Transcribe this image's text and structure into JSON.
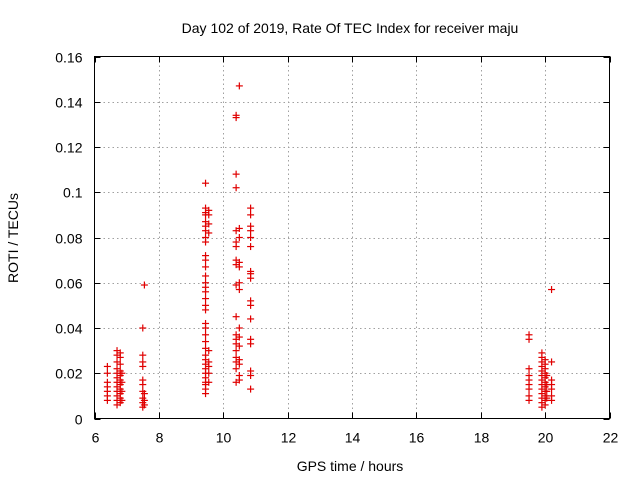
{
  "chart_data": {
    "type": "scatter",
    "title": "Day 102 of 2019, Rate Of TEC Index for receiver maju",
    "xlabel": "GPS time / hours",
    "ylabel": "ROTI / TECUs",
    "xlim": [
      6,
      22
    ],
    "ylim": [
      0,
      0.16
    ],
    "xticks": [
      6,
      8,
      10,
      12,
      14,
      16,
      18,
      20,
      22
    ],
    "yticks": [
      0,
      0.02,
      0.04,
      0.06,
      0.08,
      0.1,
      0.12,
      0.14,
      0.16
    ],
    "ytick_labels": [
      "0",
      "0.02",
      "0.04",
      "0.06",
      "0.08",
      "0.1",
      "0.12",
      "0.14",
      "0.16"
    ],
    "grid": true,
    "marker": "+",
    "color": "#e00000",
    "series": [
      {
        "name": "ROTI",
        "points": [
          [
            6.4,
            0.008
          ],
          [
            6.4,
            0.01
          ],
          [
            6.4,
            0.012
          ],
          [
            6.4,
            0.014
          ],
          [
            6.4,
            0.016
          ],
          [
            6.4,
            0.02
          ],
          [
            6.4,
            0.023
          ],
          [
            6.7,
            0.006
          ],
          [
            6.7,
            0.008
          ],
          [
            6.7,
            0.01
          ],
          [
            6.7,
            0.012
          ],
          [
            6.7,
            0.014
          ],
          [
            6.7,
            0.016
          ],
          [
            6.7,
            0.018
          ],
          [
            6.7,
            0.02
          ],
          [
            6.7,
            0.022
          ],
          [
            6.7,
            0.025
          ],
          [
            6.7,
            0.028
          ],
          [
            6.7,
            0.03
          ],
          [
            6.8,
            0.007
          ],
          [
            6.8,
            0.009
          ],
          [
            6.8,
            0.011
          ],
          [
            6.8,
            0.013
          ],
          [
            6.8,
            0.015
          ],
          [
            6.8,
            0.017
          ],
          [
            6.8,
            0.019
          ],
          [
            6.8,
            0.021
          ],
          [
            6.8,
            0.024
          ],
          [
            6.8,
            0.027
          ],
          [
            6.8,
            0.029
          ],
          [
            6.85,
            0.008
          ],
          [
            6.85,
            0.012
          ],
          [
            6.85,
            0.016
          ],
          [
            6.85,
            0.02
          ],
          [
            7.5,
            0.005
          ],
          [
            7.5,
            0.007
          ],
          [
            7.5,
            0.009
          ],
          [
            7.5,
            0.012
          ],
          [
            7.5,
            0.015
          ],
          [
            7.5,
            0.017
          ],
          [
            7.5,
            0.023
          ],
          [
            7.5,
            0.025
          ],
          [
            7.5,
            0.028
          ],
          [
            7.5,
            0.04
          ],
          [
            7.55,
            0.059
          ],
          [
            7.55,
            0.006
          ],
          [
            7.55,
            0.008
          ],
          [
            7.55,
            0.011
          ],
          [
            9.45,
            0.011
          ],
          [
            9.45,
            0.013
          ],
          [
            9.45,
            0.015
          ],
          [
            9.45,
            0.016
          ],
          [
            9.45,
            0.018
          ],
          [
            9.45,
            0.02
          ],
          [
            9.45,
            0.022
          ],
          [
            9.45,
            0.024
          ],
          [
            9.45,
            0.026
          ],
          [
            9.45,
            0.028
          ],
          [
            9.45,
            0.031
          ],
          [
            9.45,
            0.034
          ],
          [
            9.45,
            0.037
          ],
          [
            9.45,
            0.04
          ],
          [
            9.45,
            0.042
          ],
          [
            9.45,
            0.048
          ],
          [
            9.45,
            0.05
          ],
          [
            9.45,
            0.053
          ],
          [
            9.45,
            0.056
          ],
          [
            9.45,
            0.058
          ],
          [
            9.45,
            0.06
          ],
          [
            9.45,
            0.063
          ],
          [
            9.45,
            0.067
          ],
          [
            9.45,
            0.07
          ],
          [
            9.45,
            0.072
          ],
          [
            9.45,
            0.078
          ],
          [
            9.45,
            0.08
          ],
          [
            9.45,
            0.083
          ],
          [
            9.45,
            0.085
          ],
          [
            9.45,
            0.087
          ],
          [
            9.45,
            0.09
          ],
          [
            9.45,
            0.091
          ],
          [
            9.45,
            0.093
          ],
          [
            9.45,
            0.104
          ],
          [
            9.55,
            0.016
          ],
          [
            9.55,
            0.02
          ],
          [
            9.55,
            0.023
          ],
          [
            9.55,
            0.025
          ],
          [
            9.55,
            0.03
          ],
          [
            9.55,
            0.082
          ],
          [
            9.55,
            0.086
          ],
          [
            9.55,
            0.09
          ],
          [
            9.55,
            0.092
          ],
          [
            10.4,
            0.016
          ],
          [
            10.4,
            0.022
          ],
          [
            10.4,
            0.025
          ],
          [
            10.4,
            0.027
          ],
          [
            10.4,
            0.03
          ],
          [
            10.4,
            0.033
          ],
          [
            10.4,
            0.035
          ],
          [
            10.4,
            0.037
          ],
          [
            10.4,
            0.045
          ],
          [
            10.4,
            0.059
          ],
          [
            10.4,
            0.068
          ],
          [
            10.4,
            0.07
          ],
          [
            10.4,
            0.076
          ],
          [
            10.4,
            0.078
          ],
          [
            10.4,
            0.083
          ],
          [
            10.4,
            0.102
          ],
          [
            10.4,
            0.108
          ],
          [
            10.4,
            0.133
          ],
          [
            10.4,
            0.134
          ],
          [
            10.5,
            0.017
          ],
          [
            10.5,
            0.019
          ],
          [
            10.5,
            0.024
          ],
          [
            10.5,
            0.026
          ],
          [
            10.5,
            0.032
          ],
          [
            10.5,
            0.036
          ],
          [
            10.5,
            0.04
          ],
          [
            10.5,
            0.057
          ],
          [
            10.5,
            0.06
          ],
          [
            10.5,
            0.067
          ],
          [
            10.5,
            0.069
          ],
          [
            10.5,
            0.08
          ],
          [
            10.5,
            0.084
          ],
          [
            10.5,
            0.147
          ],
          [
            10.85,
            0.013
          ],
          [
            10.85,
            0.019
          ],
          [
            10.85,
            0.021
          ],
          [
            10.85,
            0.033
          ],
          [
            10.85,
            0.035
          ],
          [
            10.85,
            0.044
          ],
          [
            10.85,
            0.05
          ],
          [
            10.85,
            0.052
          ],
          [
            10.85,
            0.062
          ],
          [
            10.85,
            0.064
          ],
          [
            10.85,
            0.065
          ],
          [
            10.85,
            0.076
          ],
          [
            10.85,
            0.08
          ],
          [
            10.85,
            0.083
          ],
          [
            10.85,
            0.085
          ],
          [
            10.85,
            0.09
          ],
          [
            10.85,
            0.093
          ],
          [
            19.5,
            0.008
          ],
          [
            19.5,
            0.01
          ],
          [
            19.5,
            0.013
          ],
          [
            19.5,
            0.015
          ],
          [
            19.5,
            0.017
          ],
          [
            19.5,
            0.019
          ],
          [
            19.5,
            0.022
          ],
          [
            19.5,
            0.035
          ],
          [
            19.5,
            0.037
          ],
          [
            19.9,
            0.005
          ],
          [
            19.9,
            0.007
          ],
          [
            19.9,
            0.009
          ],
          [
            19.9,
            0.011
          ],
          [
            19.9,
            0.013
          ],
          [
            19.9,
            0.015
          ],
          [
            19.9,
            0.017
          ],
          [
            19.9,
            0.019
          ],
          [
            19.9,
            0.021
          ],
          [
            19.9,
            0.023
          ],
          [
            19.9,
            0.025
          ],
          [
            19.9,
            0.027
          ],
          [
            19.9,
            0.029
          ],
          [
            20.0,
            0.006
          ],
          [
            20.0,
            0.008
          ],
          [
            20.0,
            0.01
          ],
          [
            20.0,
            0.012
          ],
          [
            20.0,
            0.014
          ],
          [
            20.0,
            0.016
          ],
          [
            20.0,
            0.018
          ],
          [
            20.0,
            0.02
          ],
          [
            20.0,
            0.022
          ],
          [
            20.0,
            0.024
          ],
          [
            20.0,
            0.026
          ],
          [
            20.05,
            0.009
          ],
          [
            20.05,
            0.012
          ],
          [
            20.05,
            0.015
          ],
          [
            20.05,
            0.019
          ],
          [
            20.2,
            0.008
          ],
          [
            20.2,
            0.01
          ],
          [
            20.2,
            0.013
          ],
          [
            20.2,
            0.015
          ],
          [
            20.2,
            0.017
          ],
          [
            20.2,
            0.025
          ],
          [
            20.2,
            0.057
          ]
        ]
      }
    ]
  }
}
